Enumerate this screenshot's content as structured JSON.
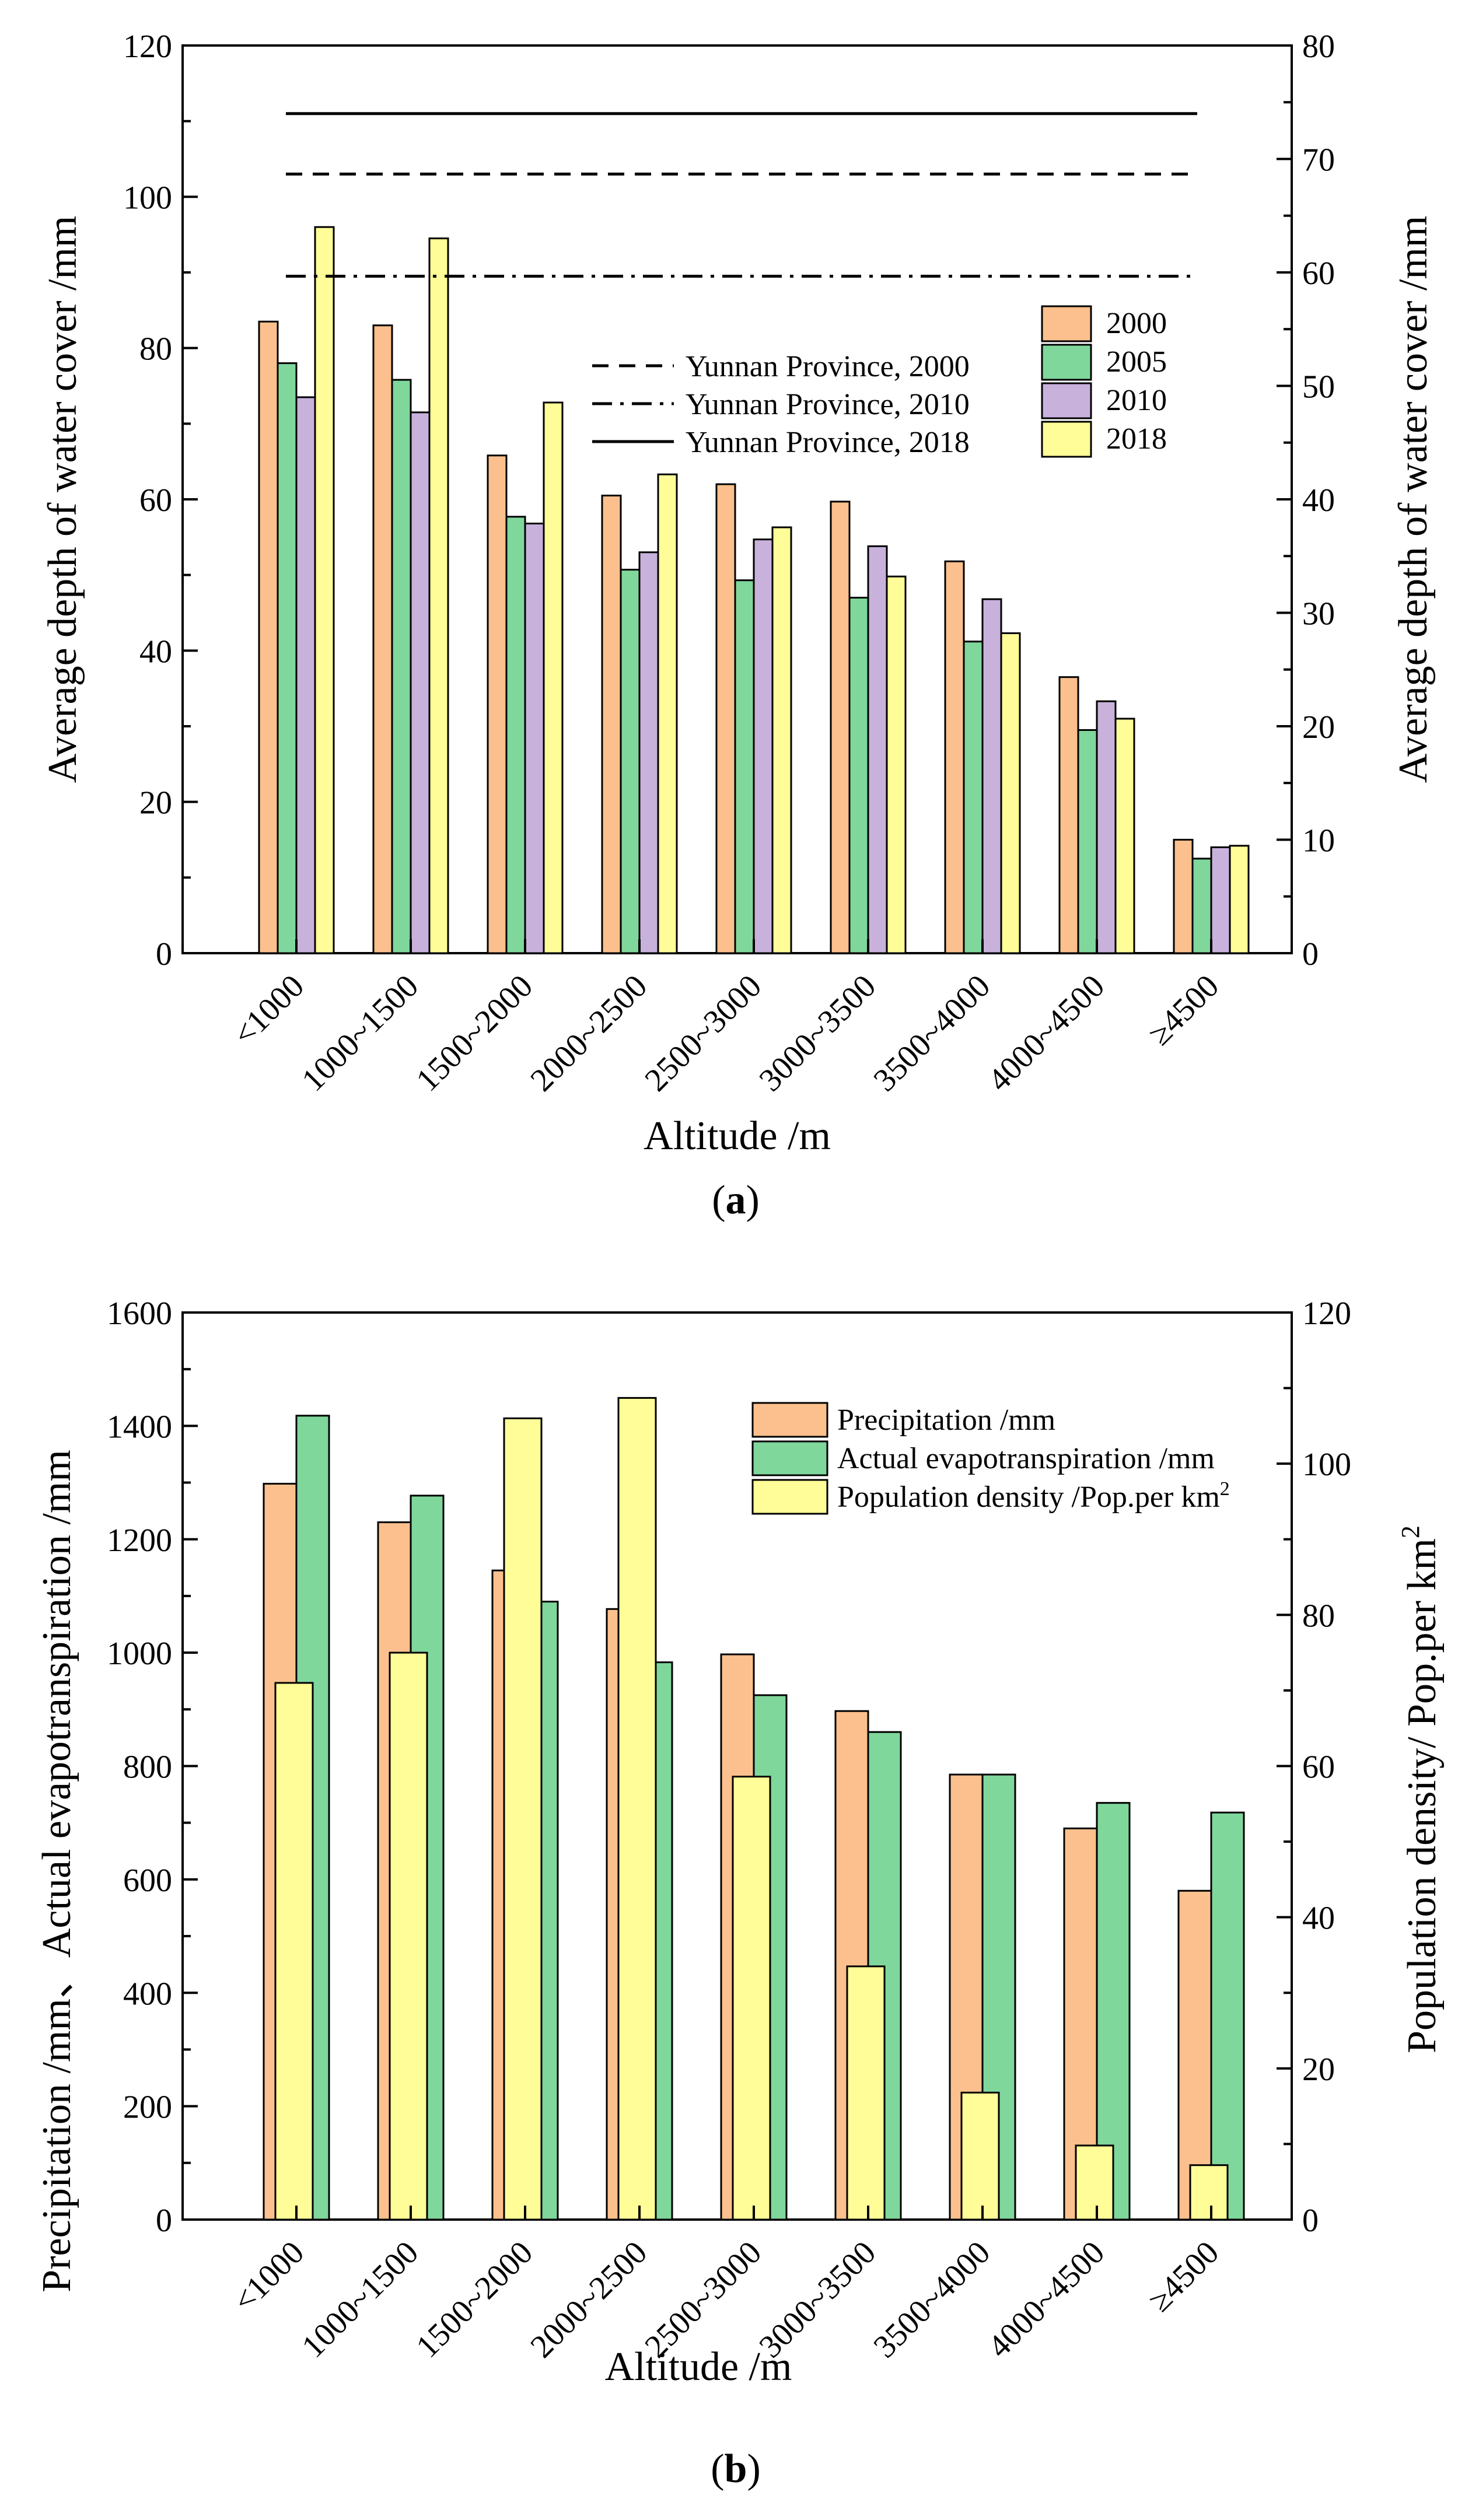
{
  "chart_data": [
    {
      "type": "bar",
      "panel_label": "(a)",
      "categories": [
        "<1000",
        "1000~1500",
        "1500~2000",
        "2000~2500",
        "2500~3000",
        "3000~3500",
        "3500~4000",
        "4000~4500",
        "≥4500"
      ],
      "xlabel": "Altitude /m",
      "ylabel_left": "Average depth of water cover /mm",
      "ylabel_right": "Average depth of water cover /mm",
      "ylim_left": [
        0,
        120
      ],
      "ylim_right": [
        0,
        80
      ],
      "yticks_left": [
        "0",
        "20",
        "40",
        "60",
        "80",
        "100",
        "120"
      ],
      "yticks_right": [
        "0",
        "10",
        "20",
        "30",
        "40",
        "50",
        "60",
        "70",
        "80"
      ],
      "series": [
        {
          "name": "2000",
          "color": "#fbc08d",
          "values": [
            83.5,
            83,
            65.8,
            60.5,
            62,
            59.7,
            51.8,
            36.5,
            15
          ]
        },
        {
          "name": "2005",
          "color": "#7fd79c",
          "values": [
            78,
            75.8,
            57.7,
            50.7,
            49.3,
            47,
            41.2,
            29.5,
            12.5
          ]
        },
        {
          "name": "2010",
          "color": "#c8b2dc",
          "values": [
            73.5,
            71.5,
            56.8,
            53,
            54.7,
            53.8,
            46.8,
            33.3,
            14
          ]
        },
        {
          "name": "2018",
          "color": "#fefd98",
          "values": [
            96,
            94.5,
            72.8,
            63.3,
            56.3,
            49.8,
            42.3,
            31,
            14.2
          ]
        }
      ],
      "reference_lines": [
        {
          "name": "Yunnan Province, 2000",
          "style": "dash",
          "value": 103
        },
        {
          "name": "Yunnan Province, 2010",
          "style": "dashdot",
          "value": 89.5
        },
        {
          "name": "Yunnan Province, 2018",
          "style": "solid",
          "value": 111
        }
      ],
      "grid": false,
      "legend": "right"
    },
    {
      "type": "bar",
      "panel_label": "(b)",
      "categories": [
        "<1000",
        "1000~1500",
        "1500~2000",
        "2000~2500",
        "2500~3000",
        "3000~3500",
        "3500~4000",
        "4000~4500",
        "≥4500"
      ],
      "xlabel": "Altitude /m",
      "ylabel_left": "Precipitation /mm、Actual evapotranspiration /mm",
      "ylabel_right_main": "Population density/ Pop.per km",
      "ylabel_right_sup": "2",
      "ylim_left": [
        0,
        1600
      ],
      "ylim_right": [
        0,
        120
      ],
      "yticks_left": [
        "0",
        "200",
        "400",
        "600",
        "800",
        "1000",
        "1200",
        "1400",
        "1600"
      ],
      "yticks_right": [
        "0",
        "20",
        "40",
        "60",
        "80",
        "100",
        "120"
      ],
      "series": [
        {
          "name": "Precipitation /mm",
          "color": "#fbc08d",
          "axis": "left",
          "values": [
            1298,
            1230,
            1145,
            1077,
            997,
            897,
            785,
            690,
            580
          ]
        },
        {
          "name": "Actual evapotranspiration /mm",
          "color": "#7fd79c",
          "axis": "left",
          "values": [
            1418,
            1277,
            1090,
            983,
            925,
            860,
            785,
            735,
            718
          ]
        },
        {
          "name": "Population density /Pop.per km",
          "name_sup": "2",
          "color": "#fefd98",
          "axis": "right",
          "values": [
            71,
            75,
            106,
            108.7,
            58.6,
            33.5,
            16.8,
            9.8,
            7.2
          ]
        }
      ],
      "grid": false,
      "legend": "top-right"
    }
  ]
}
